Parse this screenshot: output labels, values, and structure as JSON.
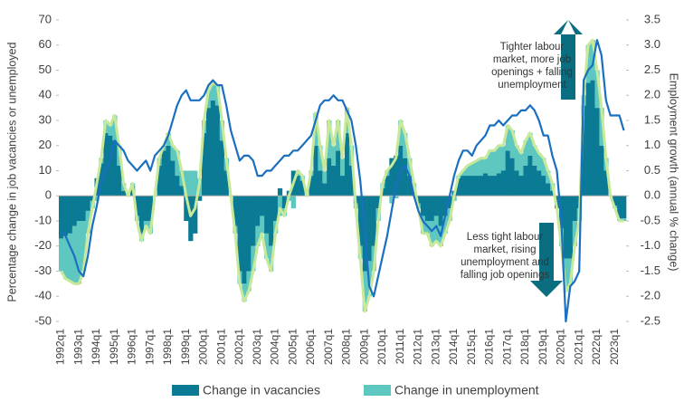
{
  "chart_data": {
    "type": "bar",
    "y_label": "Percentage change in job vacancies or unemployed",
    "y2_label": "Employment growth (annual % change)",
    "categories": [
      "1992q1",
      null,
      null,
      null,
      "1993q1",
      null,
      null,
      null,
      "1994q1",
      null,
      null,
      null,
      "1995q1",
      null,
      null,
      null,
      "1996q1",
      null,
      null,
      null,
      "1997q1",
      null,
      null,
      null,
      "1998q1",
      null,
      null,
      null,
      "1999q1",
      null,
      null,
      null,
      "2000q1",
      null,
      null,
      null,
      "2001q1",
      null,
      null,
      null,
      "2002q1",
      null,
      null,
      null,
      "2003q1",
      null,
      null,
      null,
      "2004q1",
      null,
      null,
      null,
      "2005q1",
      null,
      null,
      null,
      "2006q1",
      null,
      null,
      null,
      "2007q1",
      null,
      null,
      null,
      "2008q1",
      null,
      null,
      null,
      "2009q1",
      null,
      null,
      null,
      "2010q1",
      null,
      null,
      null,
      "2011q1",
      null,
      null,
      null,
      "2012q1",
      null,
      null,
      null,
      "2013q1",
      null,
      null,
      null,
      "2014q1",
      null,
      null,
      null,
      "2015q1",
      null,
      null,
      null,
      "2016q1",
      null,
      null,
      null,
      "2017q1",
      null,
      null,
      null,
      "2018q1",
      null,
      null,
      null,
      "2019q1",
      null,
      null,
      null,
      "2020q1",
      null,
      null,
      null,
      "2021q1",
      null,
      null,
      null,
      "2022q1",
      null,
      null,
      null,
      "2023q1",
      null,
      null
    ],
    "series": [
      {
        "name": "Change in vacancies",
        "color": "#0b7a94",
        "kind": "bar",
        "values": [
          -17,
          -16,
          -15,
          -12,
          -10,
          -10,
          -6,
          -2,
          7,
          13,
          25,
          24,
          22,
          12,
          2,
          0,
          4,
          -8,
          -15,
          -10,
          -10,
          0,
          12,
          18,
          20,
          14,
          8,
          4,
          -10,
          -18,
          -15,
          -2,
          25,
          35,
          38,
          36,
          22,
          10,
          0,
          -12,
          -30,
          -35,
          -30,
          -20,
          -12,
          -8,
          -15,
          -20,
          -10,
          3,
          -5,
          2,
          10,
          8,
          6,
          0,
          8,
          20,
          10,
          5,
          15,
          12,
          18,
          8,
          25,
          12,
          -3,
          -20,
          -30,
          -26,
          -20,
          -5,
          3,
          8,
          15,
          16,
          20,
          15,
          8,
          2,
          -3,
          -8,
          -10,
          -10,
          -8,
          -12,
          -8,
          -5,
          2,
          7,
          8,
          8,
          8,
          8,
          8,
          9,
          8,
          8,
          9,
          10,
          18,
          15,
          10,
          8,
          12,
          16,
          12,
          10,
          8,
          5,
          2,
          -5,
          -13,
          -25,
          -25,
          -10,
          -5,
          36,
          45,
          46,
          35,
          20,
          10,
          0,
          -4,
          -9,
          -9
        ]
      },
      {
        "name": "Change in unemployment",
        "color": "#5ec8c0",
        "kind": "bar",
        "values": [
          -13,
          -17,
          -19,
          -23,
          -25,
          -20,
          -9,
          -3,
          -2,
          2,
          5,
          4,
          10,
          8,
          3,
          0,
          1,
          -2,
          -3,
          -2,
          -5,
          0,
          3,
          2,
          5,
          6,
          10,
          6,
          10,
          10,
          10,
          7,
          5,
          7,
          7,
          8,
          8,
          5,
          0,
          -3,
          -5,
          -7,
          -8,
          -10,
          -8,
          -7,
          -10,
          -10,
          -5,
          -8,
          -3,
          -2,
          -5,
          2,
          2,
          0,
          2,
          13,
          10,
          5,
          15,
          8,
          12,
          7,
          10,
          8,
          -2,
          -5,
          -16,
          -14,
          -10,
          -5,
          2,
          2,
          -3,
          -1,
          10,
          10,
          7,
          3,
          -2,
          -7,
          -5,
          -10,
          -10,
          -8,
          -7,
          -5,
          -2,
          1,
          2,
          4,
          5,
          6,
          7,
          6,
          10,
          10,
          11,
          10,
          10,
          11,
          10,
          9,
          10,
          9,
          8,
          7,
          7,
          5,
          3,
          0,
          -7,
          -13,
          -10,
          -10,
          -5,
          4,
          15,
          16,
          15,
          15,
          5,
          0,
          -1,
          -1,
          -1
        ]
      },
      {
        "color": "#c8e89a",
        "kind": "line",
        "values": [
          -30,
          -33,
          -34,
          -35,
          -35,
          -30,
          -15,
          -5,
          5,
          15,
          30,
          28,
          32,
          20,
          5,
          0,
          5,
          -10,
          -18,
          -12,
          -15,
          0,
          15,
          20,
          25,
          20,
          18,
          10,
          0,
          -8,
          -5,
          5,
          30,
          42,
          45,
          44,
          30,
          15,
          0,
          -15,
          -35,
          -42,
          -38,
          -30,
          -20,
          -15,
          -25,
          -30,
          -15,
          -5,
          -8,
          0,
          5,
          10,
          8,
          0,
          10,
          33,
          20,
          10,
          30,
          20,
          30,
          15,
          35,
          20,
          -5,
          -25,
          -46,
          -40,
          -30,
          -10,
          5,
          10,
          12,
          15,
          30,
          25,
          15,
          5,
          -5,
          -15,
          -15,
          -20,
          -18,
          -20,
          -15,
          -10,
          0,
          8,
          10,
          12,
          13,
          14,
          15,
          15,
          18,
          18,
          20,
          20,
          28,
          26,
          20,
          17,
          22,
          25,
          20,
          17,
          15,
          10,
          5,
          -5,
          -20,
          -38,
          -35,
          -20,
          -10,
          40,
          60,
          62,
          50,
          35,
          15,
          0,
          -5,
          -10,
          -10
        ]
      },
      {
        "color": "#1a6fc0",
        "kind": "line",
        "axis": "y2",
        "values": [
          -0.7,
          -0.8,
          -1.0,
          -1.2,
          -1.5,
          -1.6,
          -1.2,
          -0.6,
          -0.2,
          0.3,
          0.5,
          0.7,
          1.1,
          1.0,
          0.9,
          0.7,
          0.6,
          0.5,
          0.6,
          0.7,
          0.5,
          0.8,
          0.9,
          1.0,
          1.2,
          1.5,
          1.8,
          2.0,
          2.1,
          1.9,
          1.9,
          1.9,
          2.0,
          2.2,
          2.3,
          2.2,
          2.2,
          1.8,
          1.3,
          1.0,
          0.7,
          0.8,
          0.8,
          0.7,
          0.4,
          0.4,
          0.5,
          0.5,
          0.6,
          0.7,
          0.8,
          0.8,
          0.9,
          0.9,
          1.0,
          1.1,
          1.2,
          1.5,
          1.8,
          1.9,
          1.9,
          2.0,
          1.9,
          1.9,
          1.7,
          1.5,
          1.0,
          0.3,
          -0.7,
          -1.8,
          -2.0,
          -1.6,
          -1.2,
          -0.8,
          -0.3,
          0.2,
          0.5,
          0.6,
          0.4,
          0.0,
          -0.3,
          -0.5,
          -0.6,
          -0.7,
          -0.6,
          -0.8,
          -0.4,
          0.0,
          0.4,
          0.7,
          0.9,
          0.9,
          0.8,
          1.0,
          1.1,
          1.2,
          1.4,
          1.4,
          1.5,
          1.4,
          1.5,
          1.6,
          1.6,
          1.7,
          1.7,
          1.8,
          1.7,
          1.5,
          1.2,
          1.2,
          0.8,
          0.5,
          -0.5,
          -2.5,
          -1.8,
          -1.7,
          -1.5,
          2.3,
          2.5,
          2.6,
          3.1,
          2.8,
          1.9,
          1.6,
          1.6,
          1.6,
          1.3
        ]
      }
    ],
    "ylim": [
      -50,
      70
    ],
    "yticks": [
      -50,
      -40,
      -30,
      -20,
      -10,
      0,
      10,
      20,
      30,
      40,
      50,
      60,
      70
    ],
    "y2lim": [
      -2.5,
      3.5
    ],
    "y2ticks": [
      -2.5,
      {
        "value": -2,
        "label": "-2.0"
      },
      -1.5,
      {
        "value": -1,
        "label": "-1.0"
      },
      -0.5,
      {
        "value": 0,
        "label": "0.0"
      },
      0.5,
      {
        "value": 1,
        "label": "1.0"
      },
      1.5,
      {
        "value": 2,
        "label": "2.0"
      },
      2.5,
      {
        "value": 3,
        "label": "3.0"
      },
      3.5
    ],
    "annotations": [
      {
        "lines": [
          "Tighter labour",
          "market, more job",
          "openings + falling",
          "unemployment"
        ]
      },
      {
        "lines": [
          "Less tight labour",
          "market, rising",
          "unemployment and",
          "falling job openings"
        ]
      }
    ]
  }
}
